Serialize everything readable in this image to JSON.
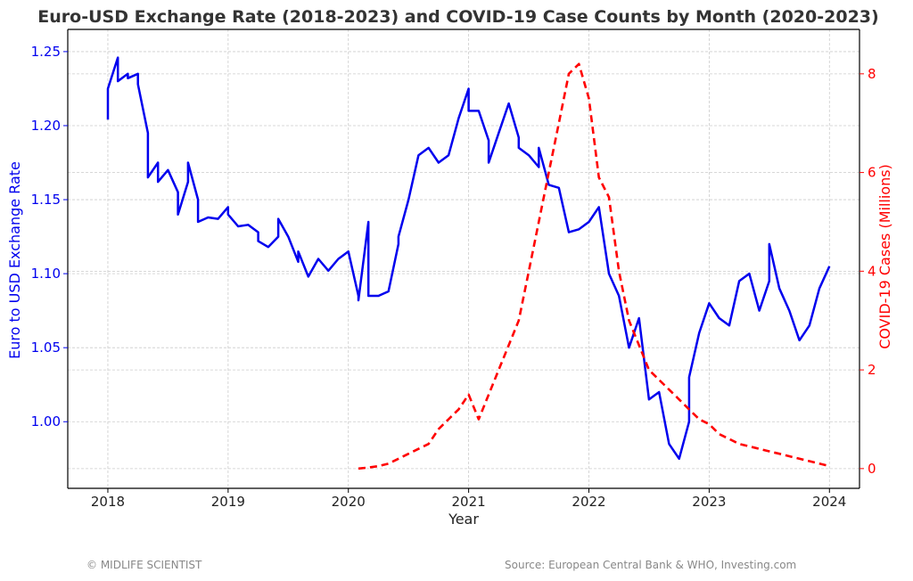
{
  "chart_data": {
    "type": "line",
    "title": "Euro-USD Exchange Rate (2018-2023) and COVID-19 Case Counts by Month (2020-2023)",
    "xlabel": "Year",
    "ylabel_left": "Euro to USD Exchange Rate",
    "ylabel_right": "COVID-19 Cases (Millions)",
    "x_ticks": [
      "2018",
      "2019",
      "2020",
      "2021",
      "2022",
      "2023",
      "2024"
    ],
    "y_left_ticks": [
      "1.00",
      "1.05",
      "1.10",
      "1.15",
      "1.20",
      "1.25"
    ],
    "y_right_ticks": [
      "0",
      "2",
      "4",
      "6",
      "8"
    ],
    "xlim": [
      "2017-09",
      "2024-04"
    ],
    "ylim_left": [
      0.955,
      1.265
    ],
    "ylim_right": [
      -0.4,
      8.9
    ],
    "grid": true,
    "colors": {
      "eur_usd": "#0000ee",
      "covid": "#ff0000",
      "left_axis": "#0000ee",
      "right_axis": "#ff0000"
    },
    "series": [
      {
        "axis": "left",
        "style": "solid",
        "points": [
          [
            "2018-01",
            1.204
          ],
          [
            "2018-01",
            1.225
          ],
          [
            "2018-02",
            1.246
          ],
          [
            "2018-02",
            1.23
          ],
          [
            "2018-03",
            1.235
          ],
          [
            "2018-03",
            1.232
          ],
          [
            "2018-04",
            1.235
          ],
          [
            "2018-04",
            1.228
          ],
          [
            "2018-05",
            1.195
          ],
          [
            "2018-05",
            1.165
          ],
          [
            "2018-06",
            1.175
          ],
          [
            "2018-06",
            1.162
          ],
          [
            "2018-07",
            1.17
          ],
          [
            "2018-08",
            1.155
          ],
          [
            "2018-08",
            1.14
          ],
          [
            "2018-09",
            1.162
          ],
          [
            "2018-09",
            1.175
          ],
          [
            "2018-10",
            1.15
          ],
          [
            "2018-10",
            1.135
          ],
          [
            "2018-11",
            1.138
          ],
          [
            "2018-12",
            1.137
          ],
          [
            "2019-01",
            1.145
          ],
          [
            "2019-01",
            1.14
          ],
          [
            "2019-02",
            1.132
          ],
          [
            "2019-03",
            1.133
          ],
          [
            "2019-04",
            1.128
          ],
          [
            "2019-04",
            1.122
          ],
          [
            "2019-05",
            1.118
          ],
          [
            "2019-06",
            1.125
          ],
          [
            "2019-06",
            1.137
          ],
          [
            "2019-07",
            1.125
          ],
          [
            "2019-08",
            1.108
          ],
          [
            "2019-08",
            1.115
          ],
          [
            "2019-09",
            1.098
          ],
          [
            "2019-10",
            1.11
          ],
          [
            "2019-11",
            1.102
          ],
          [
            "2019-12",
            1.11
          ],
          [
            "2020-01",
            1.115
          ],
          [
            "2020-02",
            1.085
          ],
          [
            "2020-02",
            1.082
          ],
          [
            "2020-03",
            1.135
          ],
          [
            "2020-03",
            1.085
          ],
          [
            "2020-04",
            1.085
          ],
          [
            "2020-05",
            1.088
          ],
          [
            "2020-06",
            1.12
          ],
          [
            "2020-06",
            1.125
          ],
          [
            "2020-07",
            1.15
          ],
          [
            "2020-08",
            1.18
          ],
          [
            "2020-09",
            1.185
          ],
          [
            "2020-10",
            1.175
          ],
          [
            "2020-11",
            1.18
          ],
          [
            "2020-12",
            1.205
          ],
          [
            "2021-01",
            1.225
          ],
          [
            "2021-01",
            1.21
          ],
          [
            "2021-02",
            1.21
          ],
          [
            "2021-03",
            1.19
          ],
          [
            "2021-03",
            1.175
          ],
          [
            "2021-04",
            1.195
          ],
          [
            "2021-05",
            1.215
          ],
          [
            "2021-06",
            1.192
          ],
          [
            "2021-06",
            1.185
          ],
          [
            "2021-07",
            1.18
          ],
          [
            "2021-08",
            1.172
          ],
          [
            "2021-08",
            1.185
          ],
          [
            "2021-09",
            1.16
          ],
          [
            "2021-10",
            1.158
          ],
          [
            "2021-11",
            1.128
          ],
          [
            "2021-12",
            1.13
          ],
          [
            "2022-01",
            1.135
          ],
          [
            "2022-02",
            1.145
          ],
          [
            "2022-03",
            1.1
          ],
          [
            "2022-04",
            1.085
          ],
          [
            "2022-05",
            1.05
          ],
          [
            "2022-06",
            1.07
          ],
          [
            "2022-07",
            1.015
          ],
          [
            "2022-08",
            1.02
          ],
          [
            "2022-09",
            0.985
          ],
          [
            "2022-10",
            0.975
          ],
          [
            "2022-11",
            1.0
          ],
          [
            "2022-11",
            1.03
          ],
          [
            "2022-12",
            1.06
          ],
          [
            "2023-01",
            1.08
          ],
          [
            "2023-02",
            1.07
          ],
          [
            "2023-03",
            1.065
          ],
          [
            "2023-04",
            1.095
          ],
          [
            "2023-05",
            1.1
          ],
          [
            "2023-06",
            1.075
          ],
          [
            "2023-07",
            1.095
          ],
          [
            "2023-07",
            1.12
          ],
          [
            "2023-08",
            1.09
          ],
          [
            "2023-09",
            1.075
          ],
          [
            "2023-10",
            1.055
          ],
          [
            "2023-11",
            1.065
          ],
          [
            "2023-12",
            1.09
          ],
          [
            "2024-01",
            1.105
          ]
        ]
      },
      {
        "axis": "right",
        "style": "dashed",
        "points": [
          [
            "2020-02",
            0.0
          ],
          [
            "2020-03",
            0.02
          ],
          [
            "2020-04",
            0.05
          ],
          [
            "2020-05",
            0.1
          ],
          [
            "2020-06",
            0.2
          ],
          [
            "2020-07",
            0.3
          ],
          [
            "2020-08",
            0.4
          ],
          [
            "2020-09",
            0.5
          ],
          [
            "2020-10",
            0.8
          ],
          [
            "2020-11",
            1.0
          ],
          [
            "2020-12",
            1.2
          ],
          [
            "2021-01",
            1.5
          ],
          [
            "2021-02",
            1.0
          ],
          [
            "2021-03",
            1.5
          ],
          [
            "2021-04",
            2.0
          ],
          [
            "2021-05",
            2.5
          ],
          [
            "2021-06",
            3.0
          ],
          [
            "2021-07",
            4.0
          ],
          [
            "2021-08",
            5.0
          ],
          [
            "2021-09",
            6.0
          ],
          [
            "2021-10",
            7.0
          ],
          [
            "2021-11",
            8.0
          ],
          [
            "2021-12",
            8.2
          ],
          [
            "2022-01",
            7.5
          ],
          [
            "2022-02",
            5.9
          ],
          [
            "2022-03",
            5.5
          ],
          [
            "2022-04",
            4.0
          ],
          [
            "2022-05",
            3.0
          ],
          [
            "2022-06",
            2.5
          ],
          [
            "2022-07",
            2.0
          ],
          [
            "2022-08",
            1.8
          ],
          [
            "2022-09",
            1.6
          ],
          [
            "2022-10",
            1.4
          ],
          [
            "2022-11",
            1.2
          ],
          [
            "2022-12",
            1.0
          ],
          [
            "2023-01",
            0.9
          ],
          [
            "2023-02",
            0.7
          ],
          [
            "2023-03",
            0.6
          ],
          [
            "2023-04",
            0.5
          ],
          [
            "2023-05",
            0.45
          ],
          [
            "2023-06",
            0.4
          ],
          [
            "2023-07",
            0.35
          ],
          [
            "2023-08",
            0.3
          ],
          [
            "2023-09",
            0.25
          ],
          [
            "2023-10",
            0.2
          ],
          [
            "2023-11",
            0.15
          ],
          [
            "2023-12",
            0.1
          ],
          [
            "2024-01",
            0.05
          ]
        ]
      }
    ]
  },
  "footer": {
    "left": "© MIDLIFE SCIENTIST",
    "right": "Source: European Central Bank & WHO, Investing.com"
  }
}
